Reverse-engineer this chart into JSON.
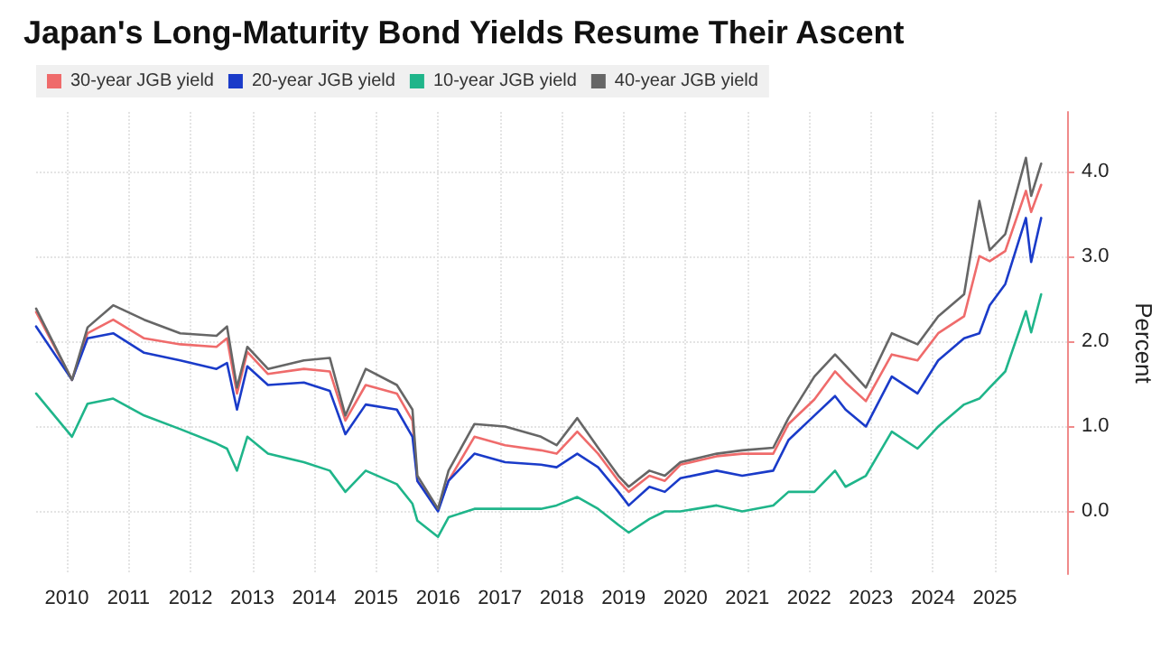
{
  "chart_data": {
    "type": "line",
    "title": "Japan's Long-Maturity Bond Yields Resume Their Ascent",
    "ylabel": "Percent",
    "x": [
      "2010-01",
      "2010-08",
      "2010-11",
      "2011-04",
      "2011-10",
      "2012-05",
      "2012-12",
      "2013-02",
      "2013-04",
      "2013-06",
      "2013-10",
      "2014-05",
      "2014-10",
      "2015-01",
      "2015-05",
      "2015-11",
      "2016-02",
      "2016-03",
      "2016-07",
      "2016-09",
      "2017-02",
      "2017-08",
      "2018-03",
      "2018-06",
      "2018-10",
      "2019-02",
      "2019-06",
      "2019-08",
      "2019-12",
      "2020-03",
      "2020-06",
      "2021-01",
      "2021-06",
      "2021-12",
      "2022-03",
      "2022-08",
      "2022-12",
      "2023-02",
      "2023-06",
      "2023-11",
      "2024-04",
      "2024-08",
      "2025-01",
      "2025-04",
      "2025-06",
      "2025-09",
      "2026-01",
      "2026-02",
      "2026-04"
    ],
    "series": [
      {
        "name": "30-year JGB yield",
        "color": "#ef6b6b",
        "values": [
          2.34,
          1.54,
          2.09,
          2.25,
          2.03,
          1.96,
          1.93,
          2.03,
          1.38,
          1.87,
          1.61,
          1.67,
          1.64,
          1.06,
          1.48,
          1.38,
          1.06,
          0.35,
          0.02,
          0.35,
          0.87,
          0.77,
          0.71,
          0.67,
          0.93,
          0.67,
          0.35,
          0.22,
          0.41,
          0.35,
          0.54,
          0.64,
          0.67,
          0.67,
          1.02,
          1.31,
          1.64,
          1.51,
          1.29,
          1.84,
          1.77,
          2.09,
          2.29,
          3.0,
          2.94,
          3.06,
          3.77,
          3.52,
          3.84
        ]
      },
      {
        "name": "20-year JGB yield",
        "color": "#1a3bc9",
        "values": [
          2.17,
          1.54,
          2.03,
          2.09,
          1.86,
          1.77,
          1.67,
          1.74,
          1.19,
          1.7,
          1.48,
          1.51,
          1.41,
          0.9,
          1.25,
          1.19,
          0.87,
          0.35,
          -0.01,
          0.35,
          0.67,
          0.57,
          0.54,
          0.51,
          0.67,
          0.51,
          0.22,
          0.06,
          0.28,
          0.22,
          0.38,
          0.47,
          0.41,
          0.47,
          0.83,
          1.12,
          1.35,
          1.19,
          0.99,
          1.58,
          1.38,
          1.77,
          2.03,
          2.09,
          2.42,
          2.67,
          3.45,
          2.93,
          3.45
        ]
      },
      {
        "name": "10-year JGB yield",
        "color": "#1fb58a",
        "values": [
          1.38,
          0.87,
          1.26,
          1.32,
          1.12,
          0.96,
          0.79,
          0.73,
          0.47,
          0.87,
          0.67,
          0.57,
          0.47,
          0.22,
          0.47,
          0.31,
          0.08,
          -0.12,
          -0.31,
          -0.08,
          0.02,
          0.02,
          0.02,
          0.06,
          0.16,
          0.02,
          -0.17,
          -0.26,
          -0.1,
          -0.01,
          -0.01,
          0.06,
          -0.01,
          0.06,
          0.22,
          0.22,
          0.47,
          0.28,
          0.41,
          0.93,
          0.73,
          0.99,
          1.25,
          1.32,
          1.45,
          1.64,
          2.35,
          2.1,
          2.55
        ]
      },
      {
        "name": "40-year JGB yield",
        "color": "#666666",
        "values": [
          2.38,
          1.54,
          2.16,
          2.42,
          2.25,
          2.09,
          2.06,
          2.17,
          1.45,
          1.93,
          1.67,
          1.77,
          1.8,
          1.12,
          1.67,
          1.48,
          1.19,
          0.41,
          0.02,
          0.47,
          1.02,
          0.99,
          0.87,
          0.77,
          1.09,
          0.74,
          0.41,
          0.28,
          0.47,
          0.41,
          0.57,
          0.67,
          0.71,
          0.74,
          1.09,
          1.58,
          1.84,
          1.71,
          1.45,
          2.09,
          1.96,
          2.29,
          2.55,
          3.65,
          3.07,
          3.26,
          4.16,
          3.71,
          4.09
        ]
      }
    ],
    "xlim": [
      "2010-01",
      "2026-09"
    ],
    "xticks": [
      {
        "value": "2010-07",
        "label": "2010"
      },
      {
        "value": "2011-07",
        "label": "2011"
      },
      {
        "value": "2012-07",
        "label": "2012"
      },
      {
        "value": "2013-07",
        "label": "2013"
      },
      {
        "value": "2014-07",
        "label": "2014"
      },
      {
        "value": "2015-07",
        "label": "2015"
      },
      {
        "value": "2016-07",
        "label": "2016"
      },
      {
        "value": "2017-07",
        "label": "2017"
      },
      {
        "value": "2018-07",
        "label": "2018"
      },
      {
        "value": "2019-07",
        "label": "2019"
      },
      {
        "value": "2020-07",
        "label": "2020"
      },
      {
        "value": "2021-07",
        "label": "2021"
      },
      {
        "value": "2022-07",
        "label": "2022"
      },
      {
        "value": "2023-07",
        "label": "2023"
      },
      {
        "value": "2024-07",
        "label": "2024"
      },
      {
        "value": "2025-07",
        "label": "2025"
      }
    ],
    "ylim": [
      -0.75,
      4.7
    ],
    "yticks": [
      {
        "value": 0,
        "label": "0.0"
      },
      {
        "value": 1,
        "label": "1.0"
      },
      {
        "value": 2,
        "label": "2.0"
      },
      {
        "value": 3,
        "label": "3.0"
      },
      {
        "value": 4,
        "label": "4.0"
      }
    ],
    "grid": true,
    "legend": "top left",
    "marker": "none",
    "line_style": "solid"
  }
}
